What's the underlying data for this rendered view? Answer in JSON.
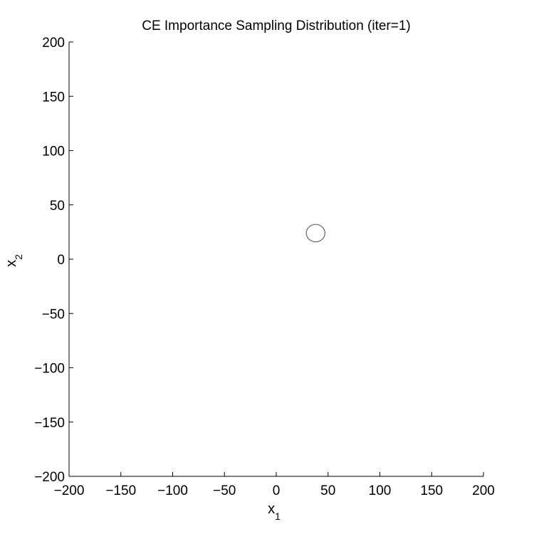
{
  "chart_data": {
    "type": "scatter",
    "title": "CE Importance Sampling Distribution (iter=1)",
    "xlabel": {
      "base": "x",
      "sub": "1"
    },
    "ylabel": {
      "base": "x",
      "sub": "2"
    },
    "xlim": [
      -200,
      200
    ],
    "ylim": [
      -200,
      200
    ],
    "xticks": [
      -200,
      -150,
      -100,
      -50,
      0,
      50,
      100,
      150,
      200
    ],
    "yticks": [
      -200,
      -150,
      -100,
      -50,
      0,
      50,
      100,
      150,
      200
    ],
    "xtick_labels": [
      "−200",
      "−150",
      "−100",
      "−50",
      "0",
      "50",
      "100",
      "150",
      "200"
    ],
    "ytick_labels": [
      "−200",
      "−150",
      "−100",
      "−50",
      "0",
      "50",
      "100",
      "150",
      "200"
    ],
    "grid": false,
    "series": [
      {
        "shape": "ellipse",
        "center": [
          38,
          24
        ],
        "radius_x": 9,
        "radius_y": 8,
        "color": "#666666"
      }
    ]
  }
}
